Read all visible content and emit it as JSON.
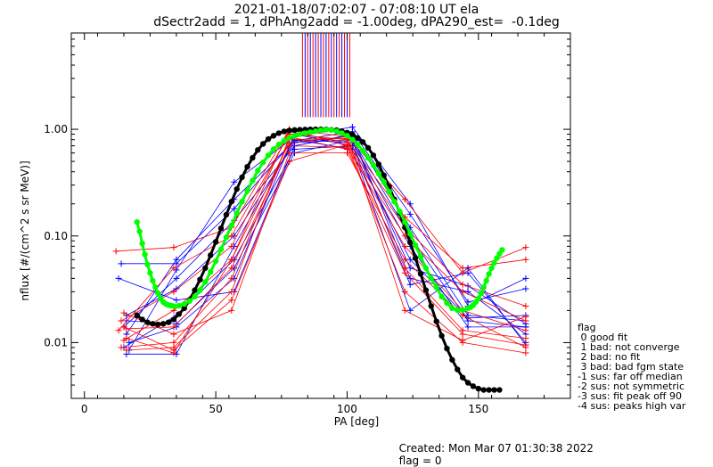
{
  "window": {
    "title_line1": "2021-01-18/07:02:07 - 07:08:10 UT ela",
    "title_line2": "dSectr2add = 1, dPhAng2add = -1.00deg, dPA290_est=  -0.1deg",
    "footer_created": "Created: Mon Mar 07 01:30:38 2022",
    "footer_flag": "flag = 0"
  },
  "legend": {
    "title": "flag",
    "items": [
      " 0 good fit",
      " 1 bad: not converge",
      " 2 bad: no fit",
      " 3 bad: bad fgm state",
      "-1 sus: far off median",
      "-2 sus: not symmetric",
      "-3 sus: fit peak off 90",
      "-4 sus: peaks high var"
    ]
  },
  "colors": {
    "red": "#ff0000",
    "blue": "#0000ff",
    "green": "#00ff00",
    "black": "#000000"
  },
  "chart_data": {
    "type": "line",
    "xlabel": "PA [deg]",
    "ylabel": "nflux [#/(cm^2 s sr MeV)]",
    "xlim": [
      -5,
      185
    ],
    "ylim": [
      0.003,
      8
    ],
    "yscale": "log",
    "xticks": [
      0,
      50,
      100,
      150
    ],
    "xtick_labels": [
      "0",
      "50",
      "100",
      "150"
    ],
    "yticks": [
      0.01,
      0.1,
      1.0
    ],
    "ytick_labels": [
      "0.01",
      "0.10",
      "1.00"
    ],
    "series": [
      {
        "color": "blue",
        "style": "line+plus",
        "lines": [
          [
            [
              17,
              0.0085
            ],
            [
              35,
              0.048
            ],
            [
              57,
              0.32
            ],
            [
              80,
              0.85
            ],
            [
              102,
              1.05
            ],
            [
              124,
              0.2
            ],
            [
              146,
              0.022
            ],
            [
              168,
              0.04
            ]
          ],
          [
            [
              16,
              0.012
            ],
            [
              35,
              0.06
            ],
            [
              57,
              0.22
            ],
            [
              80,
              0.78
            ],
            [
              102,
              0.95
            ],
            [
              124,
              0.16
            ],
            [
              146,
              0.024
            ],
            [
              168,
              0.032
            ]
          ],
          [
            [
              15,
              0.014
            ],
            [
              35,
              0.04
            ],
            [
              57,
              0.14
            ],
            [
              80,
              0.7
            ],
            [
              102,
              0.9
            ],
            [
              124,
              0.12
            ],
            [
              146,
              0.018
            ],
            [
              168,
              0.016
            ]
          ],
          [
            [
              16,
              0.018
            ],
            [
              35,
              0.032
            ],
            [
              57,
              0.1
            ],
            [
              80,
              0.75
            ],
            [
              102,
              0.8
            ],
            [
              124,
              0.1
            ],
            [
              146,
              0.016
            ],
            [
              168,
              0.014
            ]
          ],
          [
            [
              14,
              0.055
            ],
            [
              35,
              0.055
            ],
            [
              57,
              0.18
            ],
            [
              80,
              0.8
            ],
            [
              102,
              0.75
            ],
            [
              124,
              0.08
            ],
            [
              146,
              0.014
            ],
            [
              168,
              0.014
            ]
          ],
          [
            [
              15,
              0.009
            ],
            [
              35,
              0.018
            ],
            [
              57,
              0.06
            ],
            [
              80,
              0.65
            ],
            [
              102,
              0.7
            ],
            [
              124,
              0.06
            ],
            [
              146,
              0.017
            ],
            [
              168,
              0.018
            ]
          ],
          [
            [
              16,
              0.016
            ],
            [
              35,
              0.015
            ],
            [
              57,
              0.05
            ],
            [
              80,
              0.6
            ],
            [
              102,
              0.8
            ],
            [
              124,
              0.05
            ],
            [
              146,
              0.034
            ],
            [
              168,
              0.015
            ]
          ],
          [
            [
              13,
              0.04
            ],
            [
              35,
              0.025
            ],
            [
              57,
              0.03
            ],
            [
              80,
              0.7
            ],
            [
              102,
              0.88
            ],
            [
              124,
              0.04
            ],
            [
              146,
              0.03
            ],
            [
              168,
              0.012
            ]
          ],
          [
            [
              17,
              0.01
            ],
            [
              35,
              0.014
            ],
            [
              57,
              0.04
            ],
            [
              80,
              0.9
            ],
            [
              102,
              0.7
            ],
            [
              124,
              0.035
            ],
            [
              146,
              0.045
            ],
            [
              168,
              0.01
            ]
          ],
          [
            [
              16,
              0.0078
            ],
            [
              35,
              0.0078
            ],
            [
              57,
              0.08
            ],
            [
              80,
              0.8
            ],
            [
              102,
              0.65
            ],
            [
              124,
              0.02
            ],
            [
              146,
              0.05
            ],
            [
              168,
              0.0095
            ]
          ]
        ]
      },
      {
        "color": "red",
        "style": "line+plus",
        "lines": [
          [
            [
              12,
              0.072
            ],
            [
              34,
              0.078
            ],
            [
              56,
              0.12
            ],
            [
              78,
              1.0
            ],
            [
              100,
              0.85
            ],
            [
              122,
              0.22
            ],
            [
              144,
              0.045
            ],
            [
              168,
              0.078
            ]
          ],
          [
            [
              13,
              0.013
            ],
            [
              34,
              0.05
            ],
            [
              56,
              0.1
            ],
            [
              78,
              0.9
            ],
            [
              100,
              0.8
            ],
            [
              122,
              0.15
            ],
            [
              144,
              0.05
            ],
            [
              168,
              0.06
            ]
          ],
          [
            [
              14,
              0.016
            ],
            [
              34,
              0.03
            ],
            [
              56,
              0.08
            ],
            [
              78,
              0.95
            ],
            [
              100,
              0.75
            ],
            [
              122,
              0.12
            ],
            [
              144,
              0.035
            ],
            [
              168,
              0.022
            ]
          ],
          [
            [
              15,
              0.0105
            ],
            [
              34,
              0.02
            ],
            [
              56,
              0.06
            ],
            [
              78,
              1.0
            ],
            [
              100,
              0.7
            ],
            [
              122,
              0.1
            ],
            [
              144,
              0.03
            ],
            [
              168,
              0.016
            ]
          ],
          [
            [
              16,
              0.0135
            ],
            [
              34,
              0.014
            ],
            [
              56,
              0.05
            ],
            [
              78,
              0.7
            ],
            [
              100,
              0.68
            ],
            [
              122,
              0.08
            ],
            [
              144,
              0.02
            ],
            [
              168,
              0.013
            ]
          ],
          [
            [
              15,
              0.019
            ],
            [
              34,
              0.012
            ],
            [
              56,
              0.02
            ],
            [
              78,
              0.6
            ],
            [
              100,
              0.6
            ],
            [
              122,
              0.06
            ],
            [
              144,
              0.018
            ],
            [
              168,
              0.009
            ]
          ],
          [
            [
              14,
              0.009
            ],
            [
              34,
              0.01
            ],
            [
              56,
              0.04
            ],
            [
              78,
              0.8
            ],
            [
              100,
              0.82
            ],
            [
              122,
              0.05
            ],
            [
              144,
              0.013
            ],
            [
              168,
              0.011
            ]
          ],
          [
            [
              16,
              0.0085
            ],
            [
              34,
              0.009
            ],
            [
              56,
              0.03
            ],
            [
              78,
              0.85
            ],
            [
              100,
              0.65
            ],
            [
              122,
              0.045
            ],
            [
              144,
              0.012
            ],
            [
              168,
              0.0095
            ]
          ],
          [
            [
              15,
              0.014
            ],
            [
              34,
              0.0085
            ],
            [
              56,
              0.025
            ],
            [
              78,
              0.5
            ],
            [
              100,
              0.72
            ],
            [
              122,
              0.03
            ],
            [
              144,
              0.01
            ],
            [
              168,
              0.008
            ]
          ],
          [
            [
              16,
              0.011
            ],
            [
              34,
              0.008
            ],
            [
              56,
              0.06
            ],
            [
              78,
              0.75
            ],
            [
              100,
              0.85
            ],
            [
              122,
              0.02
            ],
            [
              144,
              0.0105
            ],
            [
              168,
              0.0175
            ]
          ]
        ]
      },
      {
        "color": "black",
        "name": "",
        "style": "thick-dots",
        "x": [
          20,
          22,
          24,
          26,
          28,
          30,
          32,
          34,
          36,
          38,
          40,
          42,
          44,
          46,
          48,
          50,
          52,
          54,
          56,
          58,
          60,
          62,
          64,
          66,
          68,
          70,
          72,
          74,
          76,
          78,
          80,
          82,
          84,
          86,
          88,
          90,
          92,
          94,
          96,
          98,
          100,
          102,
          104,
          106,
          108,
          110,
          112,
          114,
          116,
          118,
          120,
          122,
          124,
          126,
          128,
          130,
          132,
          134,
          136,
          138,
          140,
          142,
          144,
          146,
          148,
          150,
          152,
          154,
          156,
          158
        ],
        "y": [
          0.018,
          0.0165,
          0.0155,
          0.015,
          0.0148,
          0.015,
          0.0155,
          0.0165,
          0.0185,
          0.021,
          0.025,
          0.031,
          0.039,
          0.05,
          0.066,
          0.088,
          0.118,
          0.158,
          0.21,
          0.275,
          0.355,
          0.445,
          0.54,
          0.64,
          0.73,
          0.81,
          0.87,
          0.92,
          0.955,
          0.975,
          0.985,
          0.99,
          0.995,
          0.998,
          0.999,
          1.0,
          0.998,
          0.99,
          0.98,
          0.96,
          0.93,
          0.89,
          0.83,
          0.76,
          0.67,
          0.57,
          0.47,
          0.37,
          0.29,
          0.22,
          0.165,
          0.12,
          0.087,
          0.062,
          0.044,
          0.031,
          0.022,
          0.0158,
          0.0116,
          0.0088,
          0.0069,
          0.0056,
          0.0047,
          0.0042,
          0.0039,
          0.0037,
          0.0036,
          0.0036,
          0.0036,
          0.0036
        ]
      },
      {
        "color": "green",
        "name": "",
        "style": "thick-dots",
        "x": [
          20,
          21,
          22,
          23,
          24,
          25,
          26,
          27,
          28,
          29,
          30,
          31,
          32,
          33,
          34,
          36,
          38,
          40,
          42,
          44,
          46,
          48,
          50,
          52,
          54,
          56,
          58,
          60,
          62,
          64,
          66,
          68,
          70,
          72,
          74,
          76,
          78,
          80,
          82,
          84,
          86,
          88,
          90,
          92,
          94,
          96,
          98,
          100,
          102,
          104,
          106,
          108,
          110,
          112,
          114,
          116,
          118,
          120,
          122,
          124,
          126,
          128,
          130,
          132,
          134,
          136,
          138,
          140,
          142,
          144,
          146,
          147,
          148,
          149,
          150,
          151,
          152,
          153,
          154,
          155,
          156,
          157,
          158,
          159
        ],
        "y": [
          0.135,
          0.11,
          0.085,
          0.067,
          0.054,
          0.045,
          0.038,
          0.033,
          0.029,
          0.026,
          0.024,
          0.023,
          0.0225,
          0.0222,
          0.022,
          0.0222,
          0.023,
          0.0245,
          0.027,
          0.031,
          0.037,
          0.046,
          0.058,
          0.075,
          0.097,
          0.126,
          0.163,
          0.21,
          0.265,
          0.33,
          0.41,
          0.49,
          0.57,
          0.65,
          0.72,
          0.78,
          0.83,
          0.87,
          0.9,
          0.92,
          0.94,
          0.96,
          0.98,
          0.99,
          0.985,
          0.96,
          0.92,
          0.87,
          0.8,
          0.72,
          0.63,
          0.54,
          0.46,
          0.385,
          0.32,
          0.26,
          0.21,
          0.17,
          0.135,
          0.105,
          0.082,
          0.064,
          0.05,
          0.04,
          0.033,
          0.027,
          0.0235,
          0.021,
          0.0202,
          0.0202,
          0.021,
          0.0215,
          0.0225,
          0.024,
          0.026,
          0.029,
          0.033,
          0.038,
          0.044,
          0.05,
          0.056,
          0.062,
          0.068,
          0.074
        ]
      }
    ],
    "vertical_lines": {
      "color_pattern": [
        "red",
        "blue"
      ],
      "x": [
        83,
        84,
        85,
        86,
        87,
        88,
        89,
        90,
        91,
        92,
        93,
        94,
        95,
        96,
        97,
        98,
        99,
        100,
        101
      ],
      "y_from": 1.3,
      "y_to": 8
    }
  }
}
